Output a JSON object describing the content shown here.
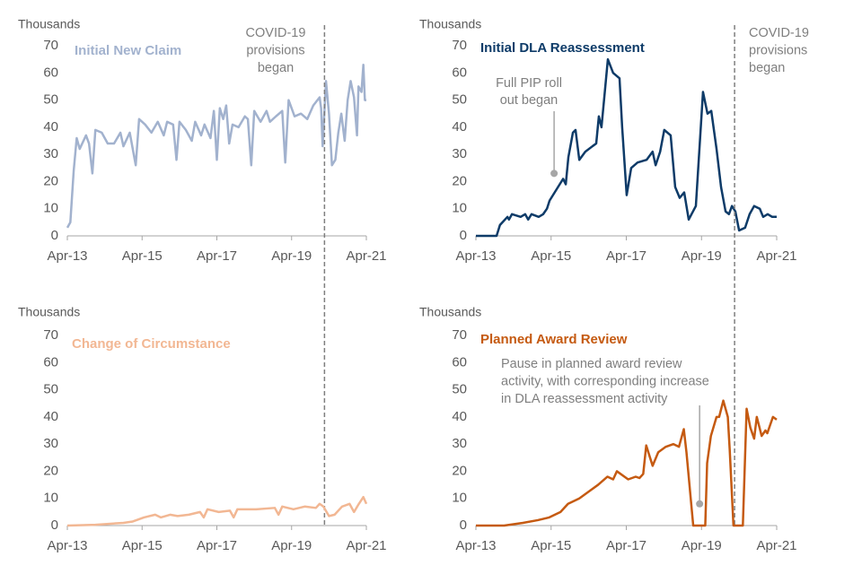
{
  "chart_data": [
    {
      "type": "line",
      "ylabel": "Thousands",
      "x": [
        2013.25,
        2013.33,
        2013.42,
        2013.5,
        2013.58,
        2013.75,
        2013.83,
        2013.92,
        2014.0,
        2014.17,
        2014.33,
        2014.5,
        2014.67,
        2014.75,
        2014.92,
        2015.08,
        2015.17,
        2015.33,
        2015.5,
        2015.67,
        2015.83,
        2015.92,
        2016.08,
        2016.17,
        2016.25,
        2016.42,
        2016.58,
        2016.67,
        2016.83,
        2016.92,
        2017.08,
        2017.17,
        2017.25,
        2017.33,
        2017.42,
        2017.5,
        2017.58,
        2017.67,
        2017.83,
        2018.0,
        2018.08,
        2018.17,
        2018.25,
        2018.42,
        2018.58,
        2018.67,
        2018.83,
        2019.0,
        2019.08,
        2019.17,
        2019.33,
        2019.5,
        2019.67,
        2019.83,
        2020.0,
        2020.04,
        2020.08,
        2020.17,
        2020.25,
        2020.33,
        2020.42,
        2020.5,
        2020.58,
        2020.67,
        2020.75,
        2020.83,
        2020.92,
        2021.0,
        2021.04,
        2021.12,
        2021.17,
        2021.21,
        2021.25
      ],
      "series": [
        {
          "name": "Initial New Claim",
          "color": "#a2b2ce",
          "values": [
            3,
            5,
            24,
            36,
            32,
            37,
            34,
            23,
            39,
            38,
            34,
            34,
            38,
            33,
            38,
            26,
            43,
            41,
            38,
            42,
            37,
            42,
            41,
            28,
            42,
            39,
            35,
            42,
            37,
            41,
            36,
            46,
            28,
            47,
            43,
            48,
            34,
            41,
            40,
            44,
            43,
            26,
            46,
            42,
            46,
            42,
            44,
            46,
            27,
            50,
            44,
            45,
            43,
            48,
            51,
            47,
            33,
            57,
            45,
            26,
            28,
            38,
            45,
            35,
            50,
            57,
            51,
            37,
            55,
            53,
            63,
            50,
            50
          ]
        }
      ],
      "xlim": [
        2013.25,
        2021.25
      ],
      "xticks": [
        {
          "value": 2013.25,
          "label": "Apr-13"
        },
        {
          "value": 2015.25,
          "label": "Apr-15"
        },
        {
          "value": 2017.25,
          "label": "Apr-17"
        },
        {
          "value": 2019.25,
          "label": "Apr-19"
        },
        {
          "value": 2021.25,
          "label": "Apr-21"
        }
      ],
      "ylim": [
        0,
        70
      ],
      "yticks": [
        0,
        10,
        20,
        30,
        40,
        50,
        60,
        70
      ],
      "grid": false,
      "annotations": [
        {
          "lines": [
            "COVID-19",
            "provisions",
            "began"
          ],
          "x": 2020.13
        }
      ]
    },
    {
      "type": "line",
      "ylabel": "Thousands",
      "x": [
        2013.25,
        2013.8,
        2013.89,
        2014.09,
        2014.13,
        2014.21,
        2014.44,
        2014.56,
        2014.64,
        2014.73,
        2014.92,
        2015.04,
        2015.14,
        2015.21,
        2015.57,
        2015.64,
        2015.71,
        2015.83,
        2015.9,
        2016.0,
        2016.16,
        2016.35,
        2016.45,
        2016.52,
        2016.59,
        2016.76,
        2016.9,
        2017.07,
        2017.14,
        2017.26,
        2017.38,
        2017.55,
        2017.79,
        2017.95,
        2018.03,
        2018.15,
        2018.26,
        2018.43,
        2018.55,
        2018.67,
        2018.79,
        2018.91,
        2019.1,
        2019.29,
        2019.41,
        2019.51,
        2019.65,
        2019.77,
        2019.89,
        2019.98,
        2020.06,
        2020.15,
        2020.25,
        2020.41,
        2020.53,
        2020.65,
        2020.8,
        2020.89,
        2021.01,
        2021.13,
        2021.25
      ],
      "series": [
        {
          "name": "Initial DLA Reassessment",
          "color": "#0e3b68",
          "values": [
            0,
            0,
            4,
            7,
            6,
            8,
            7,
            8,
            6,
            8,
            7,
            8,
            10,
            13,
            21,
            19,
            29,
            38,
            39,
            28,
            31,
            33,
            34,
            44,
            40,
            65,
            60,
            58,
            40,
            15,
            25,
            27,
            28,
            31,
            26,
            31,
            39,
            37,
            18,
            14,
            16,
            6,
            11,
            53,
            45,
            46,
            32,
            18,
            9,
            8,
            11,
            9,
            2,
            3,
            8,
            11,
            10,
            7,
            8,
            7,
            7
          ]
        }
      ],
      "xlim": [
        2013.25,
        2021.25
      ],
      "xticks": [
        {
          "value": 2013.25,
          "label": "Apr-13"
        },
        {
          "value": 2015.25,
          "label": "Apr-15"
        },
        {
          "value": 2017.25,
          "label": "Apr-17"
        },
        {
          "value": 2019.25,
          "label": "Apr-19"
        },
        {
          "value": 2021.25,
          "label": "Apr-21"
        }
      ],
      "ylim": [
        0,
        70
      ],
      "yticks": [
        0,
        10,
        20,
        30,
        40,
        50,
        60,
        70
      ],
      "grid": false,
      "annotations": [
        {
          "lines": [
            "COVID-19",
            "provisions",
            "began"
          ],
          "x": 2020.13
        },
        {
          "lines": [
            "Full PIP roll",
            "out began"
          ],
          "x": 2015.33,
          "y": 23
        }
      ]
    },
    {
      "type": "line",
      "ylabel": "Thousands",
      "x": [
        2013.25,
        2014.0,
        2014.75,
        2015.0,
        2015.3,
        2015.6,
        2015.75,
        2016.0,
        2016.2,
        2016.5,
        2016.8,
        2016.9,
        2017.0,
        2017.3,
        2017.6,
        2017.7,
        2017.8,
        2018.3,
        2018.8,
        2018.9,
        2019.0,
        2019.3,
        2019.6,
        2019.9,
        2020.0,
        2020.1,
        2020.25,
        2020.4,
        2020.6,
        2020.8,
        2020.92,
        2021.05,
        2021.17,
        2021.25
      ],
      "series": [
        {
          "name": "Change of Circumstance",
          "color": "#f2b793",
          "values": [
            0,
            0.3,
            1,
            1.5,
            3,
            4,
            3,
            4,
            3.5,
            4,
            5,
            3,
            6,
            5,
            5.5,
            3,
            6,
            6,
            6.5,
            4,
            7,
            6,
            7,
            6.5,
            8,
            7,
            3.5,
            4,
            7,
            8,
            5,
            8,
            10.5,
            8
          ]
        }
      ],
      "xlim": [
        2013.25,
        2021.25
      ],
      "xticks": [
        {
          "value": 2013.25,
          "label": "Apr-13"
        },
        {
          "value": 2015.25,
          "label": "Apr-15"
        },
        {
          "value": 2017.25,
          "label": "Apr-17"
        },
        {
          "value": 2019.25,
          "label": "Apr-19"
        },
        {
          "value": 2021.25,
          "label": "Apr-21"
        }
      ],
      "ylim": [
        0,
        70
      ],
      "yticks": [
        0,
        10,
        20,
        30,
        40,
        50,
        60,
        70
      ],
      "grid": false
    },
    {
      "type": "line",
      "ylabel": "Thousands",
      "x": [
        2013.25,
        2014.0,
        2014.5,
        2014.9,
        2015.2,
        2015.5,
        2015.7,
        2016.0,
        2016.3,
        2016.5,
        2016.75,
        2016.9,
        2017.0,
        2017.3,
        2017.5,
        2017.6,
        2017.7,
        2017.78,
        2017.95,
        2018.1,
        2018.3,
        2018.5,
        2018.65,
        2018.78,
        2018.85,
        2019.03,
        2019.35,
        2019.4,
        2019.5,
        2019.65,
        2019.72,
        2019.83,
        2019.95,
        2020.0,
        2020.1,
        2020.35,
        2020.45,
        2020.55,
        2020.65,
        2020.72,
        2020.85,
        2020.95,
        2021.0,
        2021.15,
        2021.25
      ],
      "series": [
        {
          "name": "Planned Award Review",
          "color": "#c55a11",
          "values": [
            0,
            0,
            1,
            2,
            3,
            5,
            8,
            10,
            13,
            15,
            18,
            17,
            20,
            17,
            18,
            17.5,
            19,
            29.5,
            22,
            27,
            29,
            30,
            29,
            35.5,
            27,
            0,
            0,
            23,
            33,
            40,
            40,
            46,
            40,
            28,
            0,
            0,
            43,
            36,
            32,
            40,
            33,
            35,
            34,
            40,
            39
          ]
        }
      ],
      "xlim": [
        2013.25,
        2021.25
      ],
      "xticks": [
        {
          "value": 2013.25,
          "label": "Apr-13"
        },
        {
          "value": 2015.25,
          "label": "Apr-15"
        },
        {
          "value": 2017.25,
          "label": "Apr-17"
        },
        {
          "value": 2019.25,
          "label": "Apr-19"
        },
        {
          "value": 2021.25,
          "label": "Apr-21"
        }
      ],
      "ylim": [
        0,
        70
      ],
      "yticks": [
        0,
        10,
        20,
        30,
        40,
        50,
        60,
        70
      ],
      "grid": false,
      "annotations": [
        {
          "lines": [
            "Pause in planned award review",
            "activity, with corresponding increase",
            "in DLA reassessment activity"
          ],
          "x": 2019.2,
          "y": 8
        }
      ]
    }
  ]
}
